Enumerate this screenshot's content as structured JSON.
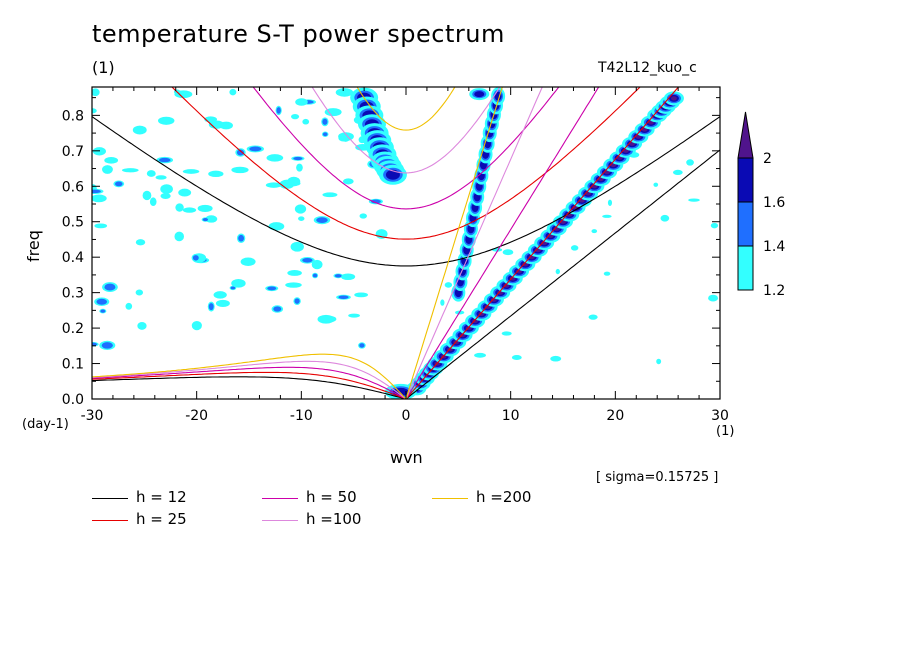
{
  "chart_data": {
    "type": "contour",
    "title": "temperature S-T power spectrum",
    "subtitle": "(1)",
    "run_name": "T42L12_kuo_c",
    "xlabel": "wvn",
    "xunit": "(1)",
    "ylabel": "freq",
    "yunit": "(day-1)",
    "xlim": [
      -30,
      30
    ],
    "ylim": [
      0.0,
      0.88
    ],
    "xticks": [
      -30,
      -20,
      -10,
      0,
      10,
      20,
      30
    ],
    "xtick_labels": [
      "-30",
      "-20",
      "-10",
      "0",
      "10",
      "20",
      "30"
    ],
    "yticks": [
      0.0,
      0.1,
      0.2,
      0.3,
      0.4,
      0.5,
      0.6,
      0.7,
      0.8
    ],
    "ytick_labels": [
      "0.0",
      "0.1",
      "0.2",
      "0.3",
      "0.4",
      "0.5",
      "0.6",
      "0.7",
      "0.8"
    ],
    "sigma_note": "[ sigma=0.15725 ]",
    "colorbar": {
      "levels": [
        1.2,
        1.4,
        1.6,
        2.0
      ],
      "labels": [
        "1.2",
        "1.4",
        "1.6",
        "2"
      ],
      "colors": [
        "#33ffff",
        "#1f6fff",
        "#0a0ab4",
        "#50148c"
      ]
    },
    "dispersion_curves": [
      {
        "label": "h = 12",
        "h": 12,
        "color": "#000000"
      },
      {
        "label": "h = 25",
        "h": 25,
        "color": "#e60000"
      },
      {
        "label": "h = 50",
        "h": 50,
        "color": "#cc00aa"
      },
      {
        "label": "h =100",
        "h": 100,
        "color": "#dd88dd"
      },
      {
        "label": "h =200",
        "h": 200,
        "color": "#f0c000"
      }
    ],
    "kelvin_band": [
      [
        1,
        0.03
      ],
      [
        3,
        0.1
      ],
      [
        6,
        0.2
      ],
      [
        9,
        0.3
      ],
      [
        12,
        0.4
      ],
      [
        15,
        0.5
      ],
      [
        18,
        0.6
      ],
      [
        21,
        0.7
      ],
      [
        24,
        0.8
      ],
      [
        26,
        0.86
      ]
    ],
    "gravity_band": [
      [
        5,
        0.3
      ],
      [
        6,
        0.45
      ],
      [
        7,
        0.6
      ],
      [
        8,
        0.75
      ],
      [
        9,
        0.88
      ]
    ],
    "eig_band": [
      [
        -4,
        0.85
      ],
      [
        -3,
        0.75
      ],
      [
        -2,
        0.67
      ],
      [
        -1,
        0.62
      ]
    ]
  }
}
